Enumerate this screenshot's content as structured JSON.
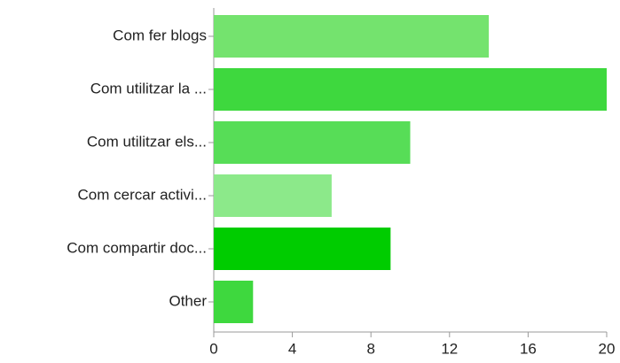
{
  "chart_data": {
    "type": "bar",
    "orientation": "horizontal",
    "categories": [
      "Com fer blogs",
      "Com utilitzar la ...",
      "Com utilitzar els...",
      "Com cercar activi...",
      "Com compartir doc...",
      "Other"
    ],
    "values": [
      14,
      20,
      10,
      6,
      9,
      2
    ],
    "colors": [
      "#74e36e",
      "#3ed83e",
      "#57dd57",
      "#8ce98a",
      "#00cc00",
      "#3ed83e"
    ],
    "xlim": [
      0,
      20
    ],
    "xticks": [
      0,
      4,
      8,
      12,
      16,
      20
    ],
    "grid": false
  }
}
